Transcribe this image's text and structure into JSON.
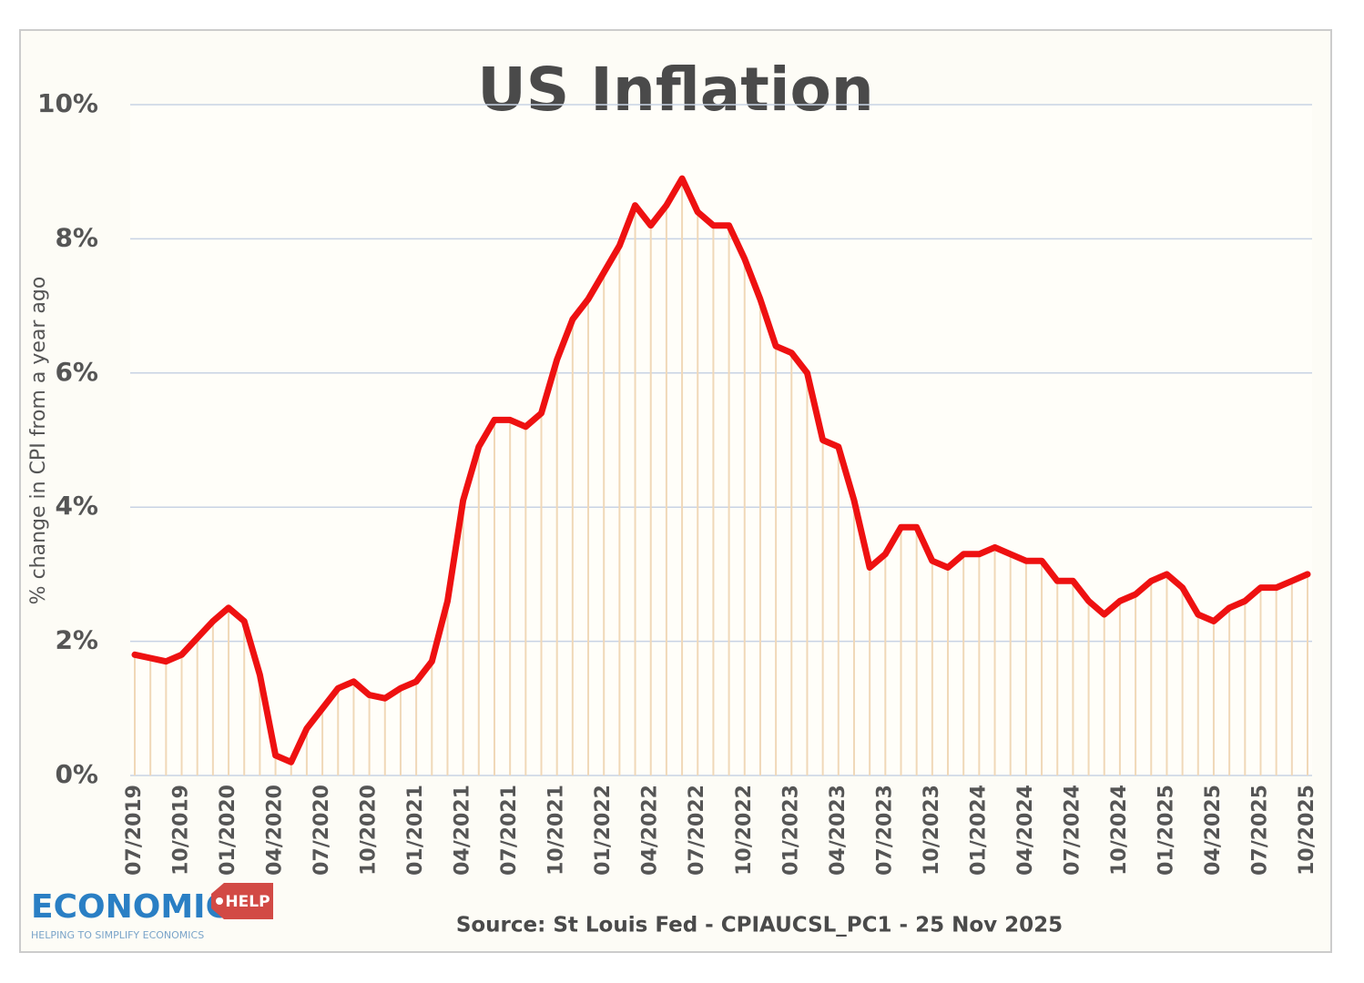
{
  "chart_data": {
    "type": "line",
    "title": "US Inflation",
    "y_label": "% change in CPI from a year ago",
    "source": "Source: St Louis Fed - CPIAUCSL_PC1 - 25 Nov 2025",
    "logo": {
      "name": "ECONOMICS",
      "tag": "HELP",
      "tagline": "HELPING TO SIMPLIFY ECONOMICS"
    },
    "categories": [
      "07/2019",
      null,
      null,
      "10/2019",
      null,
      null,
      "01/2020",
      null,
      null,
      "04/2020",
      null,
      null,
      "07/2020",
      null,
      null,
      "10/2020",
      null,
      null,
      "01/2021",
      null,
      null,
      "04/2021",
      null,
      null,
      "07/2021",
      null,
      null,
      "10/2021",
      null,
      null,
      "01/2022",
      null,
      null,
      "04/2022",
      null,
      null,
      "07/2022",
      null,
      null,
      "10/2022",
      null,
      null,
      "01/2023",
      null,
      null,
      "04/2023",
      null,
      null,
      "07/2023",
      null,
      null,
      "10/2023",
      null,
      null,
      "01/2024",
      null,
      null,
      "04/2024",
      null,
      null,
      "07/2024",
      null,
      null,
      "10/2024",
      null,
      null,
      "01/2025",
      null,
      null,
      "04/2025",
      null,
      null,
      "07/2025",
      null,
      null,
      "10/2025"
    ],
    "series": [
      {
        "name": "CPI",
        "color": "#ee1111",
        "drop_color": "#f0d8b8",
        "values": [
          1.8,
          1.75,
          1.7,
          1.8,
          2.05,
          2.3,
          2.5,
          2.3,
          1.5,
          0.3,
          0.2,
          0.7,
          1.0,
          1.3,
          1.4,
          1.2,
          1.15,
          1.3,
          1.4,
          1.7,
          2.6,
          4.1,
          4.9,
          5.3,
          5.3,
          5.2,
          5.4,
          6.2,
          6.8,
          7.1,
          7.5,
          7.9,
          8.5,
          8.2,
          8.5,
          8.9,
          8.4,
          8.2,
          8.2,
          7.7,
          7.1,
          6.4,
          6.3,
          6.0,
          5.0,
          4.9,
          4.1,
          3.1,
          3.3,
          3.7,
          3.7,
          3.2,
          3.1,
          3.3,
          3.3,
          3.4,
          3.3,
          3.2,
          3.2,
          2.9,
          2.9,
          2.6,
          2.4,
          2.6,
          2.7,
          2.9,
          3.0,
          2.8,
          2.4,
          2.3,
          2.5,
          2.6,
          2.8,
          2.8,
          2.9,
          3.0
        ]
      }
    ],
    "ylim": [
      0,
      10
    ],
    "yticks": [
      {
        "value": 0,
        "label": "0%"
      },
      {
        "value": 2,
        "label": "2%"
      },
      {
        "value": 4,
        "label": "4%"
      },
      {
        "value": 6,
        "label": "6%"
      },
      {
        "value": 8,
        "label": "8%"
      },
      {
        "value": 10,
        "label": "10%"
      }
    ],
    "grid": true
  }
}
